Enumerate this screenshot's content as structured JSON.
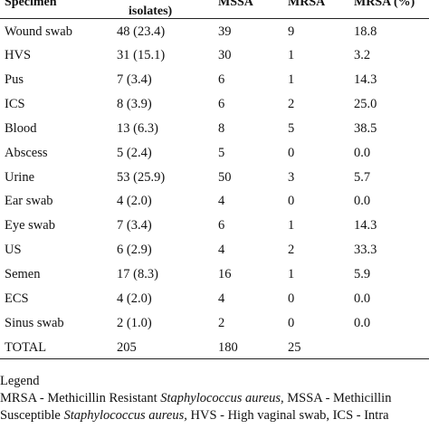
{
  "header": {
    "col_specimen": "Specimen",
    "col_isolates": "isolates)",
    "col_mssa": "MSSA",
    "col_mrsa": "MRSA",
    "col_mrsa_pct": "MRSA (%)"
  },
  "rows": [
    {
      "specimen": "Wound swab",
      "isolates": "48 (23.4)",
      "mssa": "39",
      "mrsa": "9",
      "pct": "18.8"
    },
    {
      "specimen": "HVS",
      "isolates": "31 (15.1)",
      "mssa": "30",
      "mrsa": "1",
      "pct": "3.2"
    },
    {
      "specimen": "Pus",
      "isolates": "7 (3.4)",
      "mssa": "6",
      "mrsa": "1",
      "pct": "14.3"
    },
    {
      "specimen": "ICS",
      "isolates": "8 (3.9)",
      "mssa": "6",
      "mrsa": "2",
      "pct": "25.0"
    },
    {
      "specimen": "Blood",
      "isolates": "13 (6.3)",
      "mssa": "8",
      "mrsa": "5",
      "pct": "38.5"
    },
    {
      "specimen": "Abscess",
      "isolates": "5 (2.4)",
      "mssa": "5",
      "mrsa": "0",
      "pct": "0.0"
    },
    {
      "specimen": "Urine",
      "isolates": "53 (25.9)",
      "mssa": "50",
      "mrsa": "3",
      "pct": "5.7"
    },
    {
      "specimen": "Ear swab",
      "isolates": "4 (2.0)",
      "mssa": "4",
      "mrsa": "0",
      "pct": "0.0"
    },
    {
      "specimen": "Eye swab",
      "isolates": "7 (3.4)",
      "mssa": "6",
      "mrsa": "1",
      "pct": "14.3"
    },
    {
      "specimen": "US",
      "isolates": "6 (2.9)",
      "mssa": "4",
      "mrsa": "2",
      "pct": "33.3"
    },
    {
      "specimen": "Semen",
      "isolates": "17 (8.3)",
      "mssa": "16",
      "mrsa": "1",
      "pct": "5.9"
    },
    {
      "specimen": "ECS",
      "isolates": "4 (2.0)",
      "mssa": "4",
      "mrsa": "0",
      "pct": "0.0"
    },
    {
      "specimen": "Sinus swab",
      "isolates": "2 (1.0)",
      "mssa": "2",
      "mrsa": "0",
      "pct": "0.0"
    },
    {
      "specimen": "TOTAL",
      "isolates": "205",
      "mssa": "180",
      "mrsa": "25",
      "pct": ""
    }
  ],
  "legend": {
    "title": "Legend",
    "line1_a": "MRSA - Methicillin Resistant ",
    "line1_b": "Staphylococcus aureus,",
    "line1_c": " MSSA - Methicillin",
    "line2_a": "Susceptible ",
    "line2_b": "Staphylococcus aureus,",
    "line2_c": " HVS - High vaginal swab, ICS - Intra"
  }
}
